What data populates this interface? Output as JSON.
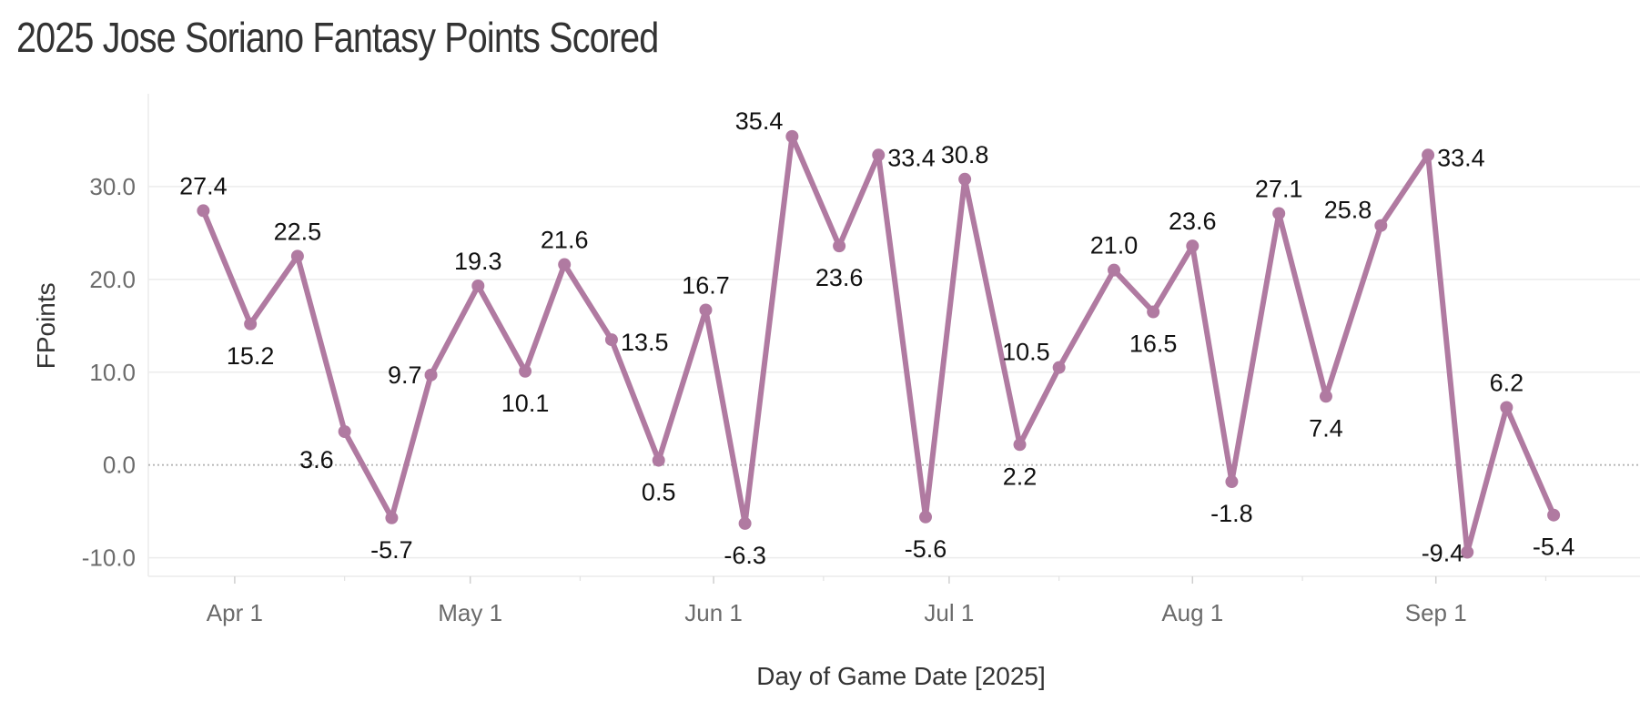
{
  "title": "2025 Jose Soriano Fantasy Points Scored",
  "chart_data": {
    "type": "line",
    "title": "2025 Jose Soriano Fantasy Points Scored",
    "xlabel": "Day of Game Date [2025]",
    "ylabel": "FPoints",
    "ylim": [
      -12,
      40
    ],
    "x_range": [
      "2025-03-21",
      "2025-09-27"
    ],
    "y_ticks": [
      -10,
      0,
      10,
      20,
      30
    ],
    "y_tick_labels": [
      "-10.0",
      "0.0",
      "10.0",
      "20.0",
      "30.0"
    ],
    "x_ticks": [
      "2025-04-01",
      "2025-05-01",
      "2025-06-01",
      "2025-07-01",
      "2025-08-01",
      "2025-09-01"
    ],
    "x_tick_labels": [
      "Apr 1",
      "May 1",
      "Jun 1",
      "Jul 1",
      "Aug 1",
      "Sep 1"
    ],
    "grid": true,
    "line_color": "#b07aa1",
    "series": [
      {
        "points": [
          {
            "date": "2025-03-28",
            "value": 27.4,
            "label": "27.4"
          },
          {
            "date": "2025-04-03",
            "value": 15.2,
            "label": "15.2"
          },
          {
            "date": "2025-04-09",
            "value": 22.5,
            "label": "22.5"
          },
          {
            "date": "2025-04-15",
            "value": 3.6,
            "label": "3.6"
          },
          {
            "date": "2025-04-21",
            "value": -5.7,
            "label": "-5.7"
          },
          {
            "date": "2025-04-26",
            "value": 9.7,
            "label": "9.7"
          },
          {
            "date": "2025-05-02",
            "value": 19.3,
            "label": "19.3"
          },
          {
            "date": "2025-05-08",
            "value": 10.1,
            "label": "10.1"
          },
          {
            "date": "2025-05-13",
            "value": 21.6,
            "label": "21.6"
          },
          {
            "date": "2025-05-19",
            "value": 13.5,
            "label": "13.5"
          },
          {
            "date": "2025-05-25",
            "value": 0.5,
            "label": "0.5"
          },
          {
            "date": "2025-05-31",
            "value": 16.7,
            "label": "16.7"
          },
          {
            "date": "2025-06-05",
            "value": -6.3,
            "label": "-6.3"
          },
          {
            "date": "2025-06-11",
            "value": 35.4,
            "label": "35.4"
          },
          {
            "date": "2025-06-17",
            "value": 23.6,
            "label": "23.6"
          },
          {
            "date": "2025-06-22",
            "value": 33.4,
            "label": "33.4"
          },
          {
            "date": "2025-06-28",
            "value": -5.6,
            "label": "-5.6"
          },
          {
            "date": "2025-07-03",
            "value": 30.8,
            "label": "30.8"
          },
          {
            "date": "2025-07-10",
            "value": 2.2,
            "label": "2.2"
          },
          {
            "date": "2025-07-15",
            "value": 10.5,
            "label": "10.5"
          },
          {
            "date": "2025-07-22",
            "value": 21.0,
            "label": "21.0"
          },
          {
            "date": "2025-07-27",
            "value": 16.5,
            "label": "16.5"
          },
          {
            "date": "2025-08-01",
            "value": 23.6,
            "label": "23.6"
          },
          {
            "date": "2025-08-06",
            "value": -1.8,
            "label": "-1.8"
          },
          {
            "date": "2025-08-12",
            "value": 27.1,
            "label": "27.1"
          },
          {
            "date": "2025-08-18",
            "value": 7.4,
            "label": "7.4"
          },
          {
            "date": "2025-08-25",
            "value": 25.8,
            "label": "25.8"
          },
          {
            "date": "2025-08-31",
            "value": 33.4,
            "label": "33.4"
          },
          {
            "date": "2025-09-05",
            "value": -9.4,
            "label": "-9.4"
          },
          {
            "date": "2025-09-10",
            "value": 6.2,
            "label": "6.2"
          },
          {
            "date": "2025-09-16",
            "value": -5.4,
            "label": "-5.4"
          }
        ]
      }
    ]
  }
}
